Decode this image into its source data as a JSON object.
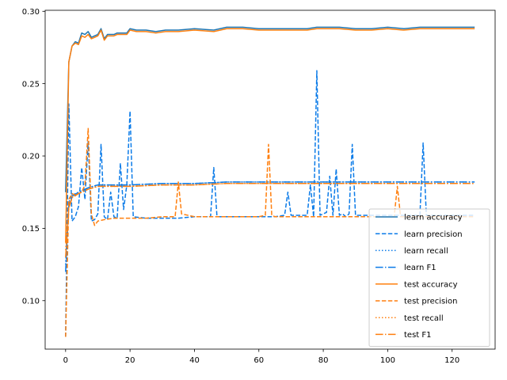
{
  "chart_data": {
    "type": "line",
    "title": "",
    "xlabel": "",
    "ylabel": "",
    "xlim": [
      -6.35,
      133.35
    ],
    "ylim": [
      0.0665,
      0.3007
    ],
    "xticks": [
      0,
      20,
      40,
      60,
      80,
      100,
      120
    ],
    "xtick_labels": [
      "0",
      "20",
      "40",
      "60",
      "80",
      "100",
      "120"
    ],
    "yticks": [
      0.1,
      0.15,
      0.2,
      0.25,
      0.3
    ],
    "ytick_labels": [
      "0.10",
      "0.15",
      "0.20",
      "0.25",
      "0.30"
    ],
    "grid": false,
    "legend_position": "lower-right",
    "colors": {
      "learn": "#1f77b4",
      "test": "#ff7f0e",
      "learn_bright": "#0b7be8"
    },
    "series": [
      {
        "name": "learn accuracy",
        "color": "#1f77b4",
        "dash": "solid",
        "x": [
          0,
          1,
          2,
          3,
          4,
          5,
          6,
          7,
          8,
          9,
          10,
          11,
          12,
          13,
          14,
          15,
          16,
          17,
          18,
          19,
          20,
          22,
          25,
          28,
          31,
          35,
          40,
          46,
          50,
          55,
          60,
          65,
          70,
          75,
          78,
          80,
          85,
          90,
          95,
          100,
          105,
          110,
          115,
          120,
          125,
          127
        ],
        "y": [
          0.175,
          0.265,
          0.276,
          0.279,
          0.278,
          0.285,
          0.284,
          0.286,
          0.282,
          0.283,
          0.284,
          0.288,
          0.281,
          0.284,
          0.284,
          0.284,
          0.285,
          0.285,
          0.285,
          0.285,
          0.288,
          0.287,
          0.287,
          0.286,
          0.287,
          0.287,
          0.288,
          0.287,
          0.289,
          0.289,
          0.288,
          0.288,
          0.288,
          0.288,
          0.289,
          0.289,
          0.289,
          0.288,
          0.288,
          0.289,
          0.288,
          0.289,
          0.289,
          0.289,
          0.289,
          0.289
        ]
      },
      {
        "name": "learn precision",
        "color": "#0b7be8",
        "dash": "dashed",
        "x": [
          0,
          1,
          2,
          3,
          4,
          5,
          6,
          7,
          8,
          9,
          10,
          11,
          12,
          13,
          14,
          15,
          16,
          17,
          18,
          19,
          20,
          21,
          25,
          30,
          35,
          40,
          45,
          46,
          47,
          50,
          55,
          60,
          65,
          68,
          69,
          70,
          75,
          76,
          77,
          78,
          79,
          80,
          81,
          82,
          83,
          84,
          85,
          86,
          87,
          88,
          89,
          90,
          95,
          100,
          105,
          110,
          111,
          112,
          115,
          120,
          125,
          127
        ],
        "y": [
          0.075,
          0.236,
          0.155,
          0.158,
          0.165,
          0.192,
          0.17,
          0.21,
          0.155,
          0.156,
          0.16,
          0.208,
          0.158,
          0.156,
          0.175,
          0.158,
          0.157,
          0.195,
          0.163,
          0.18,
          0.231,
          0.158,
          0.157,
          0.157,
          0.157,
          0.158,
          0.158,
          0.192,
          0.158,
          0.158,
          0.158,
          0.158,
          0.158,
          0.159,
          0.175,
          0.159,
          0.159,
          0.18,
          0.158,
          0.259,
          0.159,
          0.16,
          0.161,
          0.186,
          0.159,
          0.191,
          0.159,
          0.16,
          0.158,
          0.16,
          0.208,
          0.159,
          0.159,
          0.159,
          0.159,
          0.159,
          0.209,
          0.159,
          0.159,
          0.159,
          0.159,
          0.159
        ]
      },
      {
        "name": "learn recall",
        "color": "#0b7be8",
        "dash": "dotted",
        "x": [
          0,
          1,
          2,
          4,
          7,
          10,
          20,
          30,
          40,
          50,
          60,
          70,
          80,
          90,
          100,
          110,
          120,
          127
        ],
        "y": [
          0.125,
          0.168,
          0.173,
          0.175,
          0.178,
          0.18,
          0.18,
          0.181,
          0.181,
          0.182,
          0.182,
          0.182,
          0.182,
          0.182,
          0.182,
          0.182,
          0.182,
          0.182
        ]
      },
      {
        "name": "learn F1",
        "color": "#0b7be8",
        "dash": "dashdot",
        "x": [
          0,
          1,
          2,
          4,
          7,
          10,
          20,
          30,
          40,
          50,
          60,
          70,
          80,
          90,
          100,
          110,
          120,
          127
        ],
        "y": [
          0.12,
          0.166,
          0.172,
          0.175,
          0.178,
          0.18,
          0.18,
          0.181,
          0.181,
          0.182,
          0.182,
          0.182,
          0.182,
          0.182,
          0.182,
          0.182,
          0.182,
          0.182
        ]
      },
      {
        "name": "test accuracy",
        "color": "#ff7f0e",
        "dash": "solid",
        "x": [
          0,
          1,
          2,
          3,
          4,
          5,
          6,
          7,
          8,
          9,
          10,
          11,
          12,
          13,
          14,
          15,
          16,
          17,
          18,
          19,
          20,
          22,
          25,
          28,
          31,
          35,
          40,
          46,
          50,
          55,
          60,
          65,
          70,
          75,
          78,
          80,
          85,
          90,
          95,
          100,
          105,
          110,
          115,
          120,
          125,
          127
        ],
        "y": [
          0.14,
          0.265,
          0.276,
          0.278,
          0.277,
          0.283,
          0.282,
          0.284,
          0.281,
          0.282,
          0.283,
          0.287,
          0.28,
          0.283,
          0.283,
          0.283,
          0.284,
          0.284,
          0.284,
          0.284,
          0.287,
          0.286,
          0.286,
          0.285,
          0.286,
          0.286,
          0.287,
          0.286,
          0.288,
          0.288,
          0.287,
          0.287,
          0.287,
          0.287,
          0.288,
          0.288,
          0.288,
          0.287,
          0.287,
          0.288,
          0.287,
          0.288,
          0.288,
          0.288,
          0.288,
          0.288
        ]
      },
      {
        "name": "test precision",
        "color": "#ff7f0e",
        "dash": "dashed",
        "x": [
          0,
          1,
          2,
          3,
          4,
          5,
          6,
          7,
          8,
          9,
          10,
          12,
          15,
          20,
          25,
          30,
          34,
          35,
          36,
          40,
          45,
          50,
          55,
          60,
          62,
          63,
          64,
          65,
          70,
          75,
          80,
          85,
          90,
          95,
          100,
          102,
          103,
          104,
          105,
          110,
          115,
          120,
          125,
          127
        ],
        "y": [
          0.075,
          0.17,
          0.174,
          0.173,
          0.174,
          0.175,
          0.18,
          0.219,
          0.16,
          0.152,
          0.155,
          0.156,
          0.157,
          0.157,
          0.157,
          0.158,
          0.158,
          0.182,
          0.16,
          0.158,
          0.158,
          0.158,
          0.158,
          0.158,
          0.159,
          0.208,
          0.159,
          0.158,
          0.158,
          0.158,
          0.158,
          0.158,
          0.158,
          0.158,
          0.158,
          0.158,
          0.179,
          0.158,
          0.158,
          0.158,
          0.158,
          0.158,
          0.158,
          0.158
        ]
      },
      {
        "name": "test recall",
        "color": "#ff7f0e",
        "dash": "dotted",
        "x": [
          0,
          1,
          2,
          4,
          7,
          10,
          20,
          30,
          40,
          50,
          60,
          70,
          80,
          90,
          100,
          110,
          120,
          127
        ],
        "y": [
          0.135,
          0.165,
          0.172,
          0.174,
          0.177,
          0.179,
          0.179,
          0.18,
          0.18,
          0.181,
          0.181,
          0.181,
          0.181,
          0.181,
          0.181,
          0.181,
          0.181,
          0.181
        ]
      },
      {
        "name": "test F1",
        "color": "#ff7f0e",
        "dash": "dashdot",
        "x": [
          0,
          1,
          2,
          4,
          7,
          10,
          20,
          30,
          40,
          50,
          60,
          70,
          80,
          90,
          100,
          110,
          120,
          127
        ],
        "y": [
          0.13,
          0.164,
          0.171,
          0.174,
          0.177,
          0.179,
          0.179,
          0.18,
          0.18,
          0.181,
          0.181,
          0.181,
          0.181,
          0.181,
          0.181,
          0.181,
          0.181,
          0.181
        ]
      }
    ]
  }
}
